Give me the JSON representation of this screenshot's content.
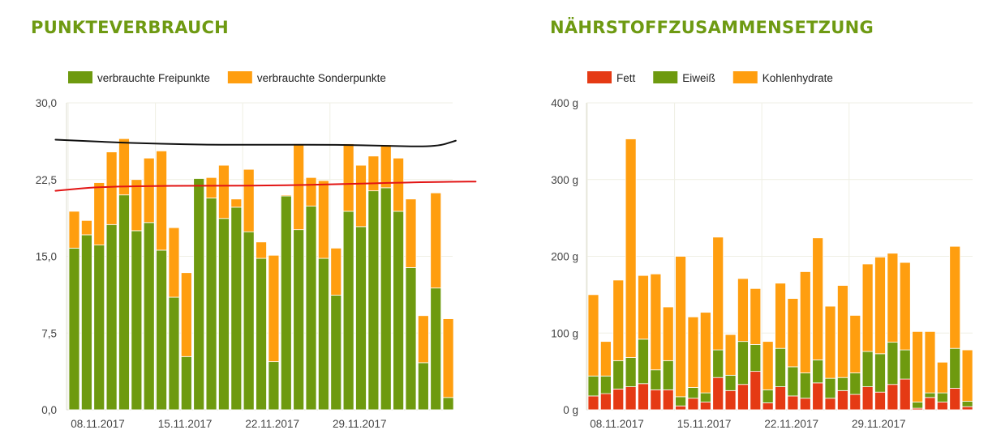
{
  "chart_data": [
    {
      "type": "bar",
      "stacked": true,
      "title": "PUNKTEVERBRAUCH",
      "legend_position": "top-left",
      "ylim": [
        0,
        30
      ],
      "yticks": [
        "0,0",
        "7,5",
        "15,0",
        "22,5",
        "30,0"
      ],
      "xtick_labels": [
        {
          "label": "08.11.2017",
          "index": 0
        },
        {
          "label": "15.11.2017",
          "index": 7
        },
        {
          "label": "22.11.2017",
          "index": 14
        },
        {
          "label": "29.11.2017",
          "index": 21
        }
      ],
      "series": [
        {
          "name": "verbrauchte Freipunkte",
          "color": "#6e9a0f",
          "values": [
            15.8,
            17.1,
            16.1,
            18.1,
            21.0,
            17.5,
            18.3,
            15.6,
            11.0,
            5.2,
            22.6,
            20.7,
            18.7,
            19.8,
            17.4,
            14.8,
            4.7,
            20.9,
            17.6,
            19.9,
            14.8,
            11.2,
            19.4,
            17.9,
            21.4,
            21.7,
            19.4,
            13.9,
            4.6,
            11.9,
            1.2
          ]
        },
        {
          "name": "verbrauchte Sonderpunkte",
          "color": "#ff9e0f",
          "values": [
            3.6,
            1.4,
            6.1,
            7.1,
            5.5,
            5.0,
            6.3,
            9.7,
            6.8,
            8.2,
            0.0,
            2.0,
            5.2,
            0.8,
            6.1,
            1.6,
            10.4,
            0.1,
            8.4,
            2.8,
            7.6,
            4.6,
            6.6,
            6.0,
            3.4,
            4.2,
            5.2,
            6.7,
            4.6,
            9.3,
            7.7
          ]
        }
      ],
      "annotations": [
        {
          "type": "freehand-line",
          "color": "#111111",
          "points": [
            [
              -1.5,
              26.4
            ],
            [
              4,
              26.1
            ],
            [
              10,
              25.9
            ],
            [
              16,
              25.9
            ],
            [
              21,
              25.9
            ],
            [
              25,
              25.8
            ],
            [
              29,
              25.7
            ],
            [
              30.6,
              26.3
            ]
          ]
        },
        {
          "type": "freehand-line",
          "color": "#e21414",
          "points": [
            [
              -1.5,
              21.4
            ],
            [
              2,
              21.8
            ],
            [
              8,
              21.9
            ],
            [
              14,
              21.9
            ],
            [
              20,
              22.0
            ],
            [
              26,
              22.2
            ],
            [
              31,
              22.3
            ],
            [
              32.2,
              22.3
            ]
          ]
        }
      ]
    },
    {
      "type": "bar",
      "stacked": true,
      "title": "NÄHRSTOFFZUSAMMENSETZUNG",
      "legend_position": "top-left",
      "ylim": [
        0,
        400
      ],
      "yticks": [
        "0 g",
        "100 g",
        "200 g",
        "300 g",
        "400 g"
      ],
      "xtick_labels": [
        {
          "label": "08.11.2017",
          "index": 0
        },
        {
          "label": "15.11.2017",
          "index": 7
        },
        {
          "label": "22.11.2017",
          "index": 14
        },
        {
          "label": "29.11.2017",
          "index": 21
        }
      ],
      "series": [
        {
          "name": "Fett",
          "color": "#e53a14",
          "values": [
            18,
            21,
            27,
            30,
            34,
            26,
            26,
            5,
            15,
            10,
            42,
            25,
            33,
            50,
            9,
            30,
            18,
            15,
            35,
            15,
            25,
            20,
            30,
            23,
            33,
            40,
            2,
            16,
            10,
            28,
            4
          ]
        },
        {
          "name": "Eiweiß",
          "color": "#6e9a0f",
          "values": [
            26,
            23,
            37,
            38,
            58,
            26,
            38,
            12,
            14,
            12,
            36,
            20,
            56,
            35,
            17,
            50,
            38,
            33,
            30,
            26,
            17,
            28,
            46,
            50,
            55,
            38,
            8,
            6,
            12,
            52,
            7
          ]
        },
        {
          "name": "Kohlenhydrate",
          "color": "#ff9e0f",
          "values": [
            106,
            45,
            105,
            285,
            83,
            125,
            70,
            183,
            92,
            105,
            147,
            53,
            82,
            73,
            63,
            85,
            89,
            132,
            159,
            94,
            120,
            75,
            114,
            126,
            116,
            114,
            92,
            80,
            40,
            133,
            67
          ]
        }
      ]
    }
  ]
}
